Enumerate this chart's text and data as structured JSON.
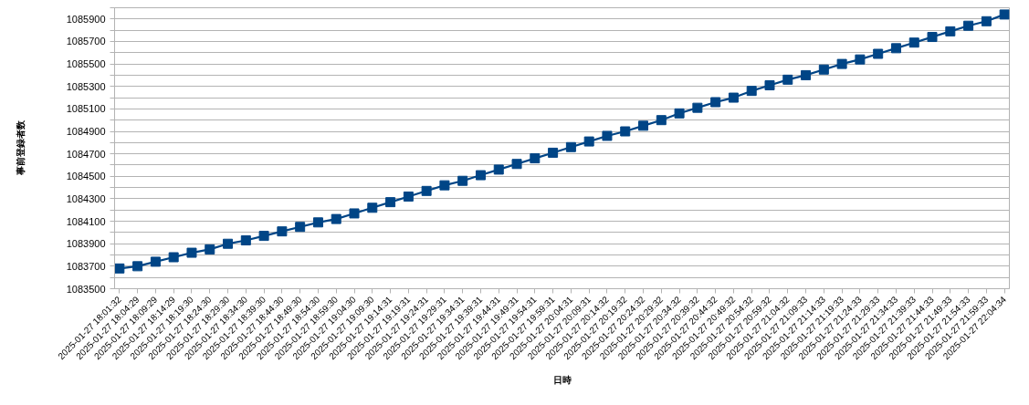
{
  "chart_data": {
    "type": "line",
    "xlabel": "日時",
    "ylabel": "事前登録者数",
    "categories": [
      "2025-01-27 18:01:32",
      "2025-01-27 18:04:29",
      "2025-01-27 18:09:29",
      "2025-01-27 18:14:29",
      "2025-01-27 18:19:30",
      "2025-01-27 18:24:30",
      "2025-01-27 18:29:30",
      "2025-01-27 18:34:30",
      "2025-01-27 18:39:30",
      "2025-01-27 18:44:30",
      "2025-01-27 18:49:30",
      "2025-01-27 18:54:30",
      "2025-01-27 18:59:30",
      "2025-01-27 19:04:30",
      "2025-01-27 19:09:30",
      "2025-01-27 19:14:31",
      "2025-01-27 19:19:31",
      "2025-01-27 19:24:31",
      "2025-01-27 19:29:31",
      "2025-01-27 19:34:31",
      "2025-01-27 19:39:31",
      "2025-01-27 19:44:31",
      "2025-01-27 19:49:31",
      "2025-01-27 19:54:31",
      "2025-01-27 19:59:31",
      "2025-01-27 20:04:31",
      "2025-01-27 20:09:31",
      "2025-01-27 20:14:32",
      "2025-01-27 20:19:32",
      "2025-01-27 20:24:32",
      "2025-01-27 20:29:32",
      "2025-01-27 20:34:32",
      "2025-01-27 20:39:32",
      "2025-01-27 20:44:32",
      "2025-01-27 20:49:32",
      "2025-01-27 20:54:32",
      "2025-01-27 20:59:32",
      "2025-01-27 21:04:32",
      "2025-01-27 21:09:33",
      "2025-01-27 21:14:33",
      "2025-01-27 21:19:33",
      "2025-01-27 21:24:33",
      "2025-01-27 21:29:33",
      "2025-01-27 21:34:33",
      "2025-01-27 21:39:33",
      "2025-01-27 21:44:33",
      "2025-01-27 21:49:33",
      "2025-01-27 21:54:33",
      "2025-01-27 21:59:33",
      "2025-01-27 22:04:34"
    ],
    "series": [
      {
        "color": "#004586",
        "values": [
          1083680,
          1083700,
          1083740,
          1083780,
          1083820,
          1083850,
          1083900,
          1083930,
          1083970,
          1084010,
          1084050,
          1084090,
          1084120,
          1084170,
          1084220,
          1084270,
          1084320,
          1084370,
          1084420,
          1084460,
          1084510,
          1084560,
          1084610,
          1084660,
          1084710,
          1084760,
          1084810,
          1084860,
          1084900,
          1084950,
          1085000,
          1085060,
          1085110,
          1085160,
          1085200,
          1085260,
          1085310,
          1085360,
          1085400,
          1085450,
          1085500,
          1085540,
          1085590,
          1085640,
          1085690,
          1085740,
          1085790,
          1085840,
          1085880,
          1085940
        ]
      }
    ],
    "ylim": [
      1083500,
      1086000
    ],
    "yticks": [
      1083500,
      {
        "value": 1083600,
        "label": null
      },
      1083700,
      {
        "value": 1083800,
        "label": null
      },
      1083900,
      {
        "value": 1084000,
        "label": null
      },
      1084100,
      {
        "value": 1084200,
        "label": null
      },
      1084300,
      {
        "value": 1084400,
        "label": null
      },
      1084500,
      {
        "value": 1084600,
        "label": null
      },
      1084700,
      {
        "value": 1084800,
        "label": null
      },
      1084900,
      {
        "value": 1085000,
        "label": null
      },
      1085100,
      {
        "value": 1085200,
        "label": null
      },
      1085300,
      {
        "value": 1085400,
        "label": null
      },
      1085500,
      {
        "value": 1085600,
        "label": null
      },
      1085700,
      {
        "value": 1085800,
        "label": null
      },
      1085900,
      {
        "value": 1086000,
        "label": null
      }
    ],
    "grid": "y",
    "marker": "square",
    "line_style": "solid"
  }
}
